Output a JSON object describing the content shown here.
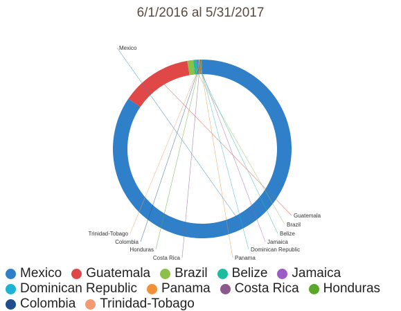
{
  "chart_data": {
    "type": "pie",
    "title": "6/1/2016 al 5/31/2017",
    "donut": true,
    "legend_position": "bottom",
    "slices": [
      {
        "label": "Mexico",
        "value": 84.5,
        "color": "#2f80c8"
      },
      {
        "label": "Guatemala",
        "value": 12.8,
        "color": "#e04848"
      },
      {
        "label": "Brazil",
        "value": 1.1,
        "color": "#8bc04a"
      },
      {
        "label": "Belize",
        "value": 0.6,
        "color": "#1ebc9e"
      },
      {
        "label": "Jamaica",
        "value": 0.25,
        "color": "#9b5cc4"
      },
      {
        "label": "Dominican Republic",
        "value": 0.2,
        "color": "#1db3d4"
      },
      {
        "label": "Panama",
        "value": 0.15,
        "color": "#f0913a"
      },
      {
        "label": "Costa Rica",
        "value": 0.15,
        "color": "#8a5a8a"
      },
      {
        "label": "Honduras",
        "value": 0.1,
        "color": "#5aa82a"
      },
      {
        "label": "Colombia",
        "value": 0.1,
        "color": "#1f4e8c"
      },
      {
        "label": "Trinidad-Tobago",
        "value": 0.05,
        "color": "#f49a70"
      }
    ]
  }
}
